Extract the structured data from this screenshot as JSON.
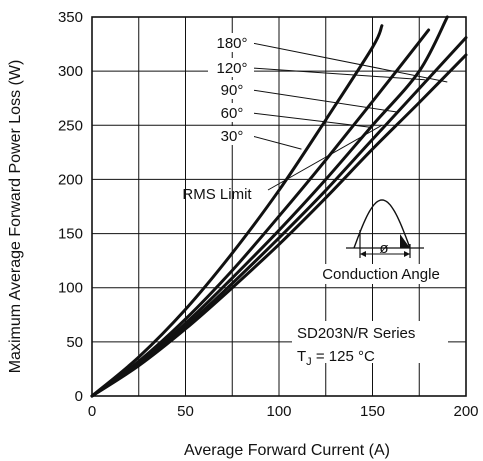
{
  "chart_data": {
    "type": "line",
    "title": "",
    "xlabel": "Average Forward Current (A)",
    "ylabel": "Maximum Average Forward Power Loss (W)",
    "xlim": [
      0,
      200
    ],
    "ylim": [
      0,
      350
    ],
    "xticks": [
      "0",
      "50",
      "100",
      "150",
      "200"
    ],
    "yticks": [
      "0",
      "50",
      "100",
      "150",
      "200",
      "250",
      "300",
      "350"
    ],
    "grid": true,
    "series": [
      {
        "name": "180°",
        "x": [
          0,
          25,
          50,
          75,
          100,
          125,
          150,
          175,
          200
        ],
        "y": [
          0,
          28,
          62,
          100,
          140,
          183,
          228,
          271,
          315
        ]
      },
      {
        "name": "120°",
        "x": [
          0,
          25,
          50,
          75,
          100,
          125,
          150,
          175,
          200
        ],
        "y": [
          0,
          29,
          64,
          104,
          146,
          190,
          237,
          284,
          331
        ]
      },
      {
        "name": "90°",
        "x": [
          0,
          25,
          50,
          75,
          100,
          125,
          150,
          175,
          190
        ],
        "y": [
          0,
          30,
          67,
          109,
          153,
          200,
          250,
          300,
          350
        ]
      },
      {
        "name": "60°",
        "x": [
          0,
          25,
          50,
          75,
          100,
          125,
          150,
          175,
          180
        ],
        "y": [
          0,
          32,
          71,
          116,
          166,
          218,
          272,
          327,
          338
        ]
      },
      {
        "name": "30°",
        "x": [
          0,
          25,
          50,
          75,
          100,
          125,
          150,
          155
        ],
        "y": [
          0,
          36,
          80,
          132,
          190,
          255,
          322,
          342
        ]
      }
    ],
    "annotations": {
      "rms_limit": "RMS Limit",
      "conduction_angle": "Conduction Angle",
      "phi_symbol": "ø",
      "series_label": "SD203N/R Series",
      "tj_prefix": "T",
      "tj_subscript": "J",
      "tj_value": " = 125 °C"
    }
  }
}
